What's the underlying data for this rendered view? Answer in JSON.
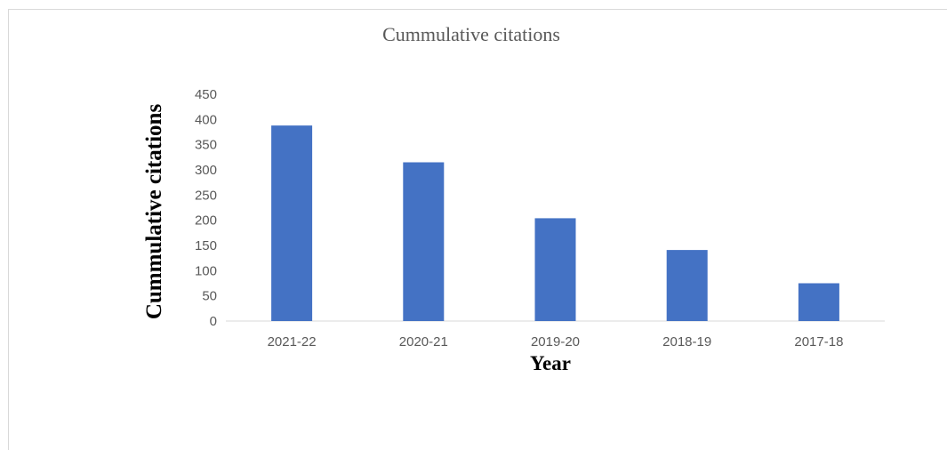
{
  "chart_data": {
    "type": "bar",
    "title": "Cummulative citations",
    "xlabel": "Year",
    "ylabel": "Cummulative citations",
    "categories": [
      "2021-22",
      "2020-21",
      "2019-20",
      "2018-19",
      "2017-18"
    ],
    "values": [
      388,
      315,
      204,
      141,
      75
    ],
    "ylim": [
      0,
      450
    ],
    "yticks": [
      0,
      50,
      100,
      150,
      200,
      250,
      300,
      350,
      400,
      450
    ],
    "grid": false,
    "legend": "none",
    "bar_color": "#4472c4"
  }
}
